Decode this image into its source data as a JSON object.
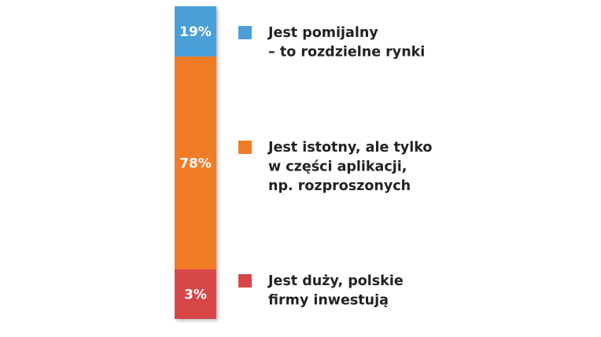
{
  "chart_data": {
    "type": "bar",
    "stacked": true,
    "orientation": "vertical",
    "series": [
      {
        "name": "Jest pomijalny – to rozdzielne rynki",
        "value": 19,
        "value_label": "19%",
        "color": "#4a9fd8",
        "legend_lines": [
          "Jest pomijalny",
          "– to rozdzielne rynki"
        ]
      },
      {
        "name": "Jest istotny, ale tylko w części aplikacji, np. rozproszonych",
        "value": 78,
        "value_label": "78%",
        "color": "#f07c26",
        "legend_lines": [
          "Jest istotny, ale tylko",
          "w części aplikacji,",
          "np. rozproszonych"
        ]
      },
      {
        "name": "Jest duży, polskie firmy inwestują",
        "value": 3,
        "value_label": "3%",
        "color": "#d7474a",
        "legend_lines": [
          "Jest duży, polskie",
          "firmy inwestują"
        ]
      }
    ],
    "legend_placement": "right",
    "grid": false,
    "title": "",
    "xlabel": "",
    "ylabel": ""
  }
}
